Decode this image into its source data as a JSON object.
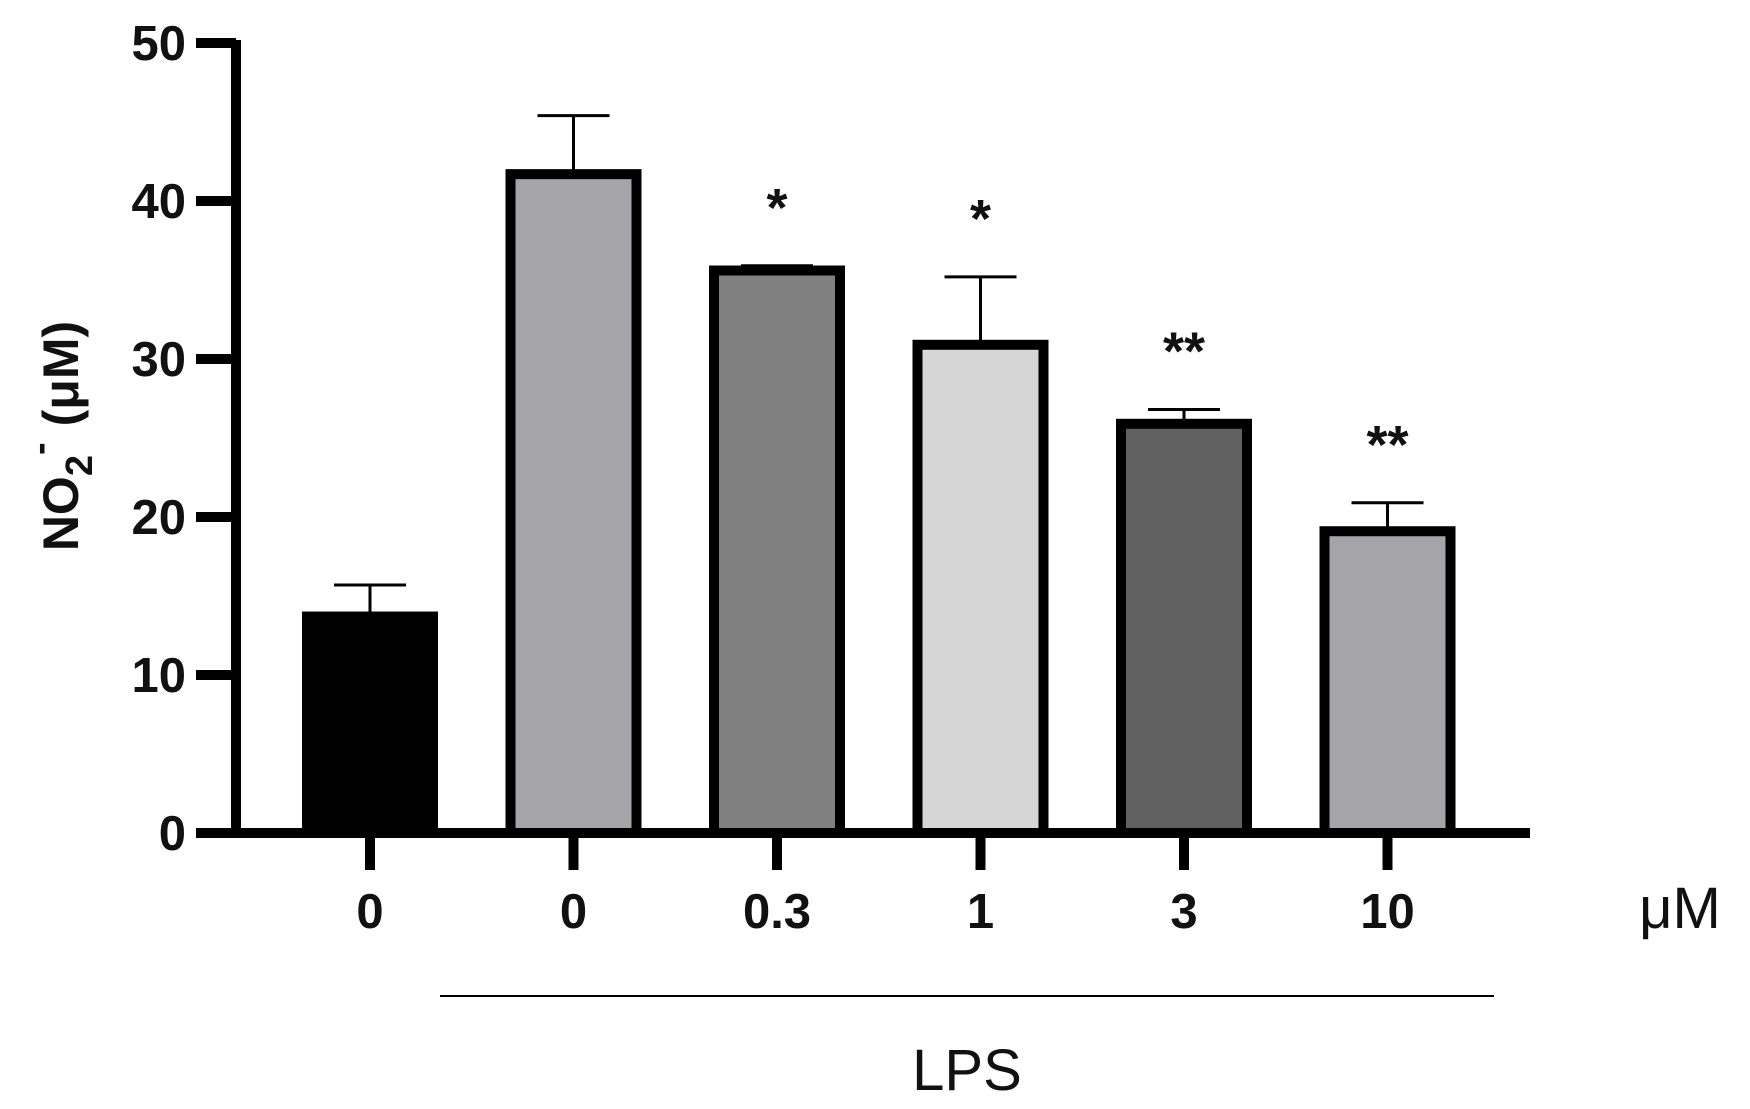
{
  "chart_data": {
    "type": "bar",
    "ylabel": {
      "main": "NO",
      "subscript": "2",
      "superscript": "-",
      "unit": "(μM)"
    },
    "ylim": [
      0,
      50
    ],
    "yticks": [
      0,
      10,
      20,
      30,
      40,
      50
    ],
    "x_unit": "μM",
    "group_label": "LPS",
    "grid": false,
    "categories": [
      "0",
      "0",
      "0.3",
      "1",
      "3",
      "10"
    ],
    "values": [
      13.7,
      41.7,
      35.6,
      30.9,
      25.9,
      19.1
    ],
    "errors": [
      2.0,
      3.7,
      0.3,
      4.3,
      0.9,
      1.8
    ],
    "significance": [
      "",
      "",
      "*",
      "*",
      "**",
      "**"
    ],
    "bar_colors": [
      "#000000",
      "#a5a5a9",
      "#808080",
      "#d6d6d6",
      "#606060",
      "#a5a5a9"
    ],
    "edge_color": "#000000"
  }
}
